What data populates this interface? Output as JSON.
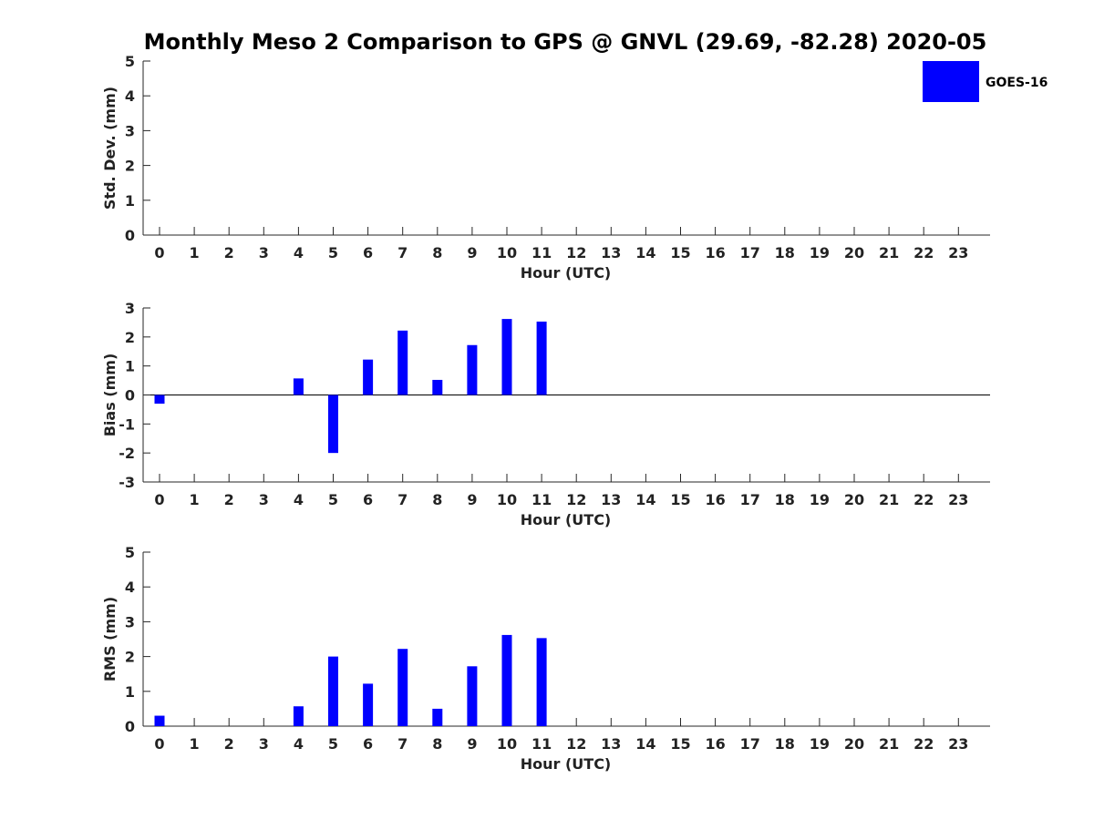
{
  "title": "Monthly Meso 2 Comparison to GPS @ GNVL (29.69, -82.28) 2020-05",
  "colors": {
    "bar": "#0000ff",
    "axis": "#262626",
    "background": "#ffffff"
  },
  "chart_data": {
    "type": "bar",
    "title": "Monthly Meso 2 Comparison to GPS @ GNVL (29.69, -82.28) 2020-05",
    "legend": {
      "position": "top-right",
      "entries": [
        "GOES-16"
      ]
    },
    "grid": false,
    "categories": [
      "0",
      "1",
      "2",
      "3",
      "4",
      "5",
      "6",
      "7",
      "8",
      "9",
      "10",
      "11",
      "12",
      "13",
      "14",
      "15",
      "16",
      "17",
      "18",
      "19",
      "20",
      "21",
      "22",
      "23"
    ],
    "panels": [
      {
        "id": "std",
        "xlabel": "Hour (UTC)",
        "ylabel": "Std. Dev. (mm)",
        "ylim": [
          0,
          5
        ],
        "yticks": [
          "0",
          "1",
          "2",
          "3",
          "4",
          "5"
        ],
        "series": [
          {
            "name": "GOES-16",
            "values": [
              0,
              0,
              0,
              0,
              0,
              0,
              0,
              0,
              0,
              0,
              0,
              0,
              0,
              0,
              0,
              0,
              0,
              0,
              0,
              0,
              0,
              0,
              0,
              0
            ]
          }
        ]
      },
      {
        "id": "bias",
        "xlabel": "Hour (UTC)",
        "ylabel": "Bias (mm)",
        "ylim": [
          -3,
          3
        ],
        "yticks": [
          "-3",
          "-2",
          "-1",
          "0",
          "1",
          "2",
          "3"
        ],
        "series": [
          {
            "name": "GOES-16",
            "values": [
              -0.3,
              0,
              0,
              0,
              0.57,
              -2.0,
              1.22,
              2.22,
              0.52,
              1.72,
              2.62,
              2.53,
              0,
              0,
              0,
              0,
              0,
              0,
              0,
              0,
              0,
              0,
              0,
              0
            ]
          }
        ]
      },
      {
        "id": "rms",
        "xlabel": "Hour (UTC)",
        "ylabel": "RMS (mm)",
        "ylim": [
          0,
          5
        ],
        "yticks": [
          "0",
          "1",
          "2",
          "3",
          "4",
          "5"
        ],
        "series": [
          {
            "name": "GOES-16",
            "values": [
              0.3,
              0,
              0,
              0,
              0.57,
              2.0,
              1.22,
              2.22,
              0.5,
              1.72,
              2.62,
              2.53,
              0,
              0,
              0,
              0,
              0,
              0,
              0,
              0,
              0,
              0,
              0,
              0
            ]
          }
        ]
      }
    ]
  }
}
